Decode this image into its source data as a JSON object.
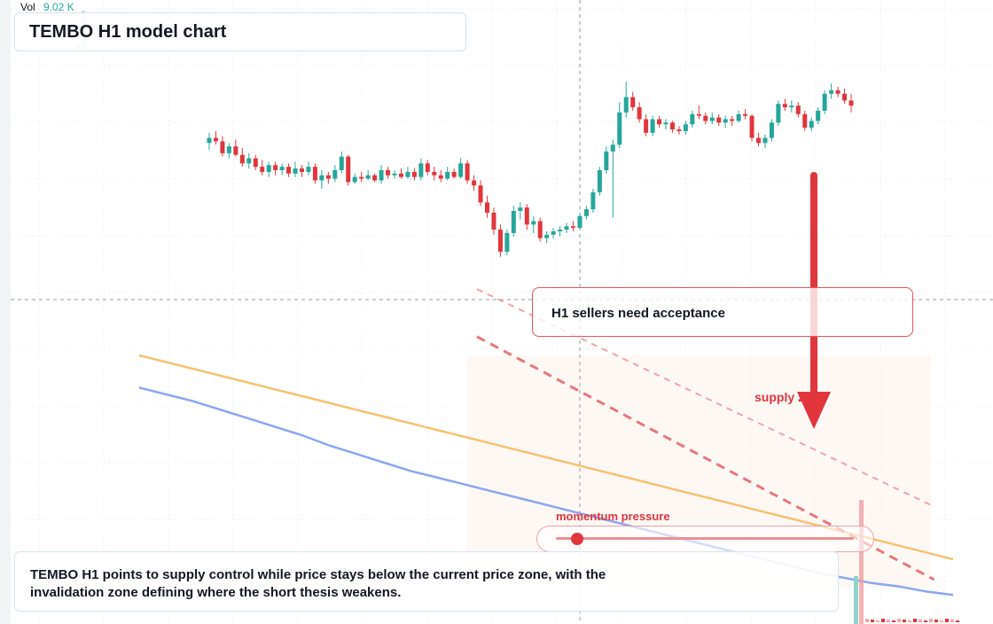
{
  "header": {
    "vol_label": "Vol",
    "vol_value": "9.02 K",
    "title": "TEMBO H1 model chart"
  },
  "annotations": {
    "callout": "H1 sellers need acceptance",
    "supply_label": "supply zone",
    "momentum_label": "momentum pressure",
    "summary": "TEMBO H1 points to supply control while price stays below the current price zone, with the invalidation zone defining where the short thesis weakens."
  },
  "momentum": {
    "level": 0.07
  },
  "colors": {
    "up": "#26a69a",
    "down": "#e0363c",
    "ma_fast": "#f7c06f",
    "ma_slow": "#8aa7f2",
    "signal": "#e0363c"
  },
  "chart_data": {
    "type": "candlestick",
    "symbol": "TEMBO",
    "timeframe": "H1",
    "grid": true,
    "price_ylim": [
      86,
      122
    ],
    "candles": [
      {
        "o": 114.0,
        "h": 114.6,
        "l": 113.6,
        "c": 114.3
      },
      {
        "o": 114.3,
        "h": 114.7,
        "l": 113.9,
        "c": 114.1
      },
      {
        "o": 114.1,
        "h": 114.4,
        "l": 113.2,
        "c": 113.4
      },
      {
        "o": 113.4,
        "h": 114.0,
        "l": 113.1,
        "c": 113.8
      },
      {
        "o": 113.8,
        "h": 114.2,
        "l": 113.2,
        "c": 113.3
      },
      {
        "o": 113.3,
        "h": 113.7,
        "l": 112.6,
        "c": 112.8
      },
      {
        "o": 112.8,
        "h": 113.4,
        "l": 112.5,
        "c": 113.1
      },
      {
        "o": 113.1,
        "h": 113.3,
        "l": 112.4,
        "c": 112.6
      },
      {
        "o": 112.6,
        "h": 113.0,
        "l": 112.1,
        "c": 112.3
      },
      {
        "o": 112.3,
        "h": 112.9,
        "l": 112.0,
        "c": 112.7
      },
      {
        "o": 112.7,
        "h": 112.9,
        "l": 112.1,
        "c": 112.4
      },
      {
        "o": 112.4,
        "h": 112.8,
        "l": 112.1,
        "c": 112.6
      },
      {
        "o": 112.6,
        "h": 112.8,
        "l": 112.0,
        "c": 112.2
      },
      {
        "o": 112.2,
        "h": 112.9,
        "l": 112.0,
        "c": 112.5
      },
      {
        "o": 112.5,
        "h": 112.7,
        "l": 112.0,
        "c": 112.3
      },
      {
        "o": 112.3,
        "h": 112.9,
        "l": 112.1,
        "c": 112.6
      },
      {
        "o": 112.6,
        "h": 112.8,
        "l": 111.6,
        "c": 111.8
      },
      {
        "o": 111.8,
        "h": 112.4,
        "l": 111.3,
        "c": 112.1
      },
      {
        "o": 112.1,
        "h": 112.3,
        "l": 111.6,
        "c": 111.9
      },
      {
        "o": 111.9,
        "h": 112.7,
        "l": 111.7,
        "c": 112.4
      },
      {
        "o": 112.4,
        "h": 113.5,
        "l": 112.2,
        "c": 113.2
      },
      {
        "o": 113.2,
        "h": 113.3,
        "l": 111.5,
        "c": 111.7
      },
      {
        "o": 111.7,
        "h": 112.2,
        "l": 111.6,
        "c": 112.0
      },
      {
        "o": 112.0,
        "h": 112.3,
        "l": 111.7,
        "c": 111.9
      },
      {
        "o": 111.9,
        "h": 112.4,
        "l": 111.8,
        "c": 112.1
      },
      {
        "o": 112.1,
        "h": 112.2,
        "l": 111.7,
        "c": 111.8
      },
      {
        "o": 111.8,
        "h": 112.7,
        "l": 111.6,
        "c": 112.4
      },
      {
        "o": 112.4,
        "h": 112.6,
        "l": 111.9,
        "c": 112.1
      },
      {
        "o": 112.1,
        "h": 112.4,
        "l": 111.9,
        "c": 112.2
      },
      {
        "o": 112.2,
        "h": 112.5,
        "l": 111.9,
        "c": 112.0
      },
      {
        "o": 112.0,
        "h": 112.6,
        "l": 111.9,
        "c": 112.3
      },
      {
        "o": 112.3,
        "h": 112.5,
        "l": 111.8,
        "c": 112.0
      },
      {
        "o": 112.0,
        "h": 113.1,
        "l": 111.8,
        "c": 112.8
      },
      {
        "o": 112.8,
        "h": 113.0,
        "l": 112.1,
        "c": 112.3
      },
      {
        "o": 112.3,
        "h": 112.6,
        "l": 111.8,
        "c": 112.1
      },
      {
        "o": 112.1,
        "h": 112.4,
        "l": 111.7,
        "c": 111.9
      },
      {
        "o": 111.9,
        "h": 112.6,
        "l": 111.8,
        "c": 112.3
      },
      {
        "o": 112.3,
        "h": 112.5,
        "l": 111.9,
        "c": 112.0
      },
      {
        "o": 112.0,
        "h": 113.1,
        "l": 111.9,
        "c": 112.8
      },
      {
        "o": 112.8,
        "h": 113.0,
        "l": 111.6,
        "c": 111.8
      },
      {
        "o": 111.8,
        "h": 112.1,
        "l": 111.2,
        "c": 111.5
      },
      {
        "o": 111.5,
        "h": 111.8,
        "l": 110.3,
        "c": 110.5
      },
      {
        "o": 110.5,
        "h": 110.9,
        "l": 109.6,
        "c": 109.9
      },
      {
        "o": 109.9,
        "h": 110.2,
        "l": 108.6,
        "c": 108.9
      },
      {
        "o": 108.9,
        "h": 109.2,
        "l": 107.3,
        "c": 107.6
      },
      {
        "o": 107.6,
        "h": 108.9,
        "l": 107.4,
        "c": 108.7
      },
      {
        "o": 108.7,
        "h": 110.3,
        "l": 108.5,
        "c": 110.0
      },
      {
        "o": 110.0,
        "h": 110.5,
        "l": 109.5,
        "c": 110.2
      },
      {
        "o": 110.2,
        "h": 110.4,
        "l": 108.9,
        "c": 109.2
      },
      {
        "o": 109.2,
        "h": 109.7,
        "l": 108.7,
        "c": 109.4
      },
      {
        "o": 109.4,
        "h": 109.6,
        "l": 108.2,
        "c": 108.4
      },
      {
        "o": 108.4,
        "h": 108.8,
        "l": 108.1,
        "c": 108.6
      },
      {
        "o": 108.6,
        "h": 109.0,
        "l": 108.4,
        "c": 108.8
      },
      {
        "o": 108.8,
        "h": 109.1,
        "l": 108.5,
        "c": 108.9
      },
      {
        "o": 108.9,
        "h": 109.3,
        "l": 108.7,
        "c": 109.1
      },
      {
        "o": 109.1,
        "h": 109.4,
        "l": 108.8,
        "c": 109.0
      },
      {
        "o": 109.0,
        "h": 109.9,
        "l": 108.9,
        "c": 109.7
      },
      {
        "o": 109.7,
        "h": 110.3,
        "l": 109.5,
        "c": 110.1
      },
      {
        "o": 110.1,
        "h": 111.3,
        "l": 109.9,
        "c": 111.1
      },
      {
        "o": 111.1,
        "h": 112.6,
        "l": 110.9,
        "c": 112.4
      },
      {
        "o": 112.4,
        "h": 113.8,
        "l": 112.2,
        "c": 113.5
      },
      {
        "o": 113.5,
        "h": 114.2,
        "l": 109.6,
        "c": 113.9
      },
      {
        "o": 113.9,
        "h": 116.4,
        "l": 113.7,
        "c": 115.8
      },
      {
        "o": 115.8,
        "h": 117.6,
        "l": 115.5,
        "c": 116.7
      },
      {
        "o": 116.7,
        "h": 117.0,
        "l": 115.9,
        "c": 116.1
      },
      {
        "o": 116.1,
        "h": 116.4,
        "l": 115.2,
        "c": 115.4
      },
      {
        "o": 115.4,
        "h": 115.7,
        "l": 114.4,
        "c": 114.6
      },
      {
        "o": 114.6,
        "h": 115.6,
        "l": 114.4,
        "c": 115.4
      },
      {
        "o": 115.4,
        "h": 115.6,
        "l": 114.9,
        "c": 115.1
      },
      {
        "o": 115.1,
        "h": 115.4,
        "l": 114.8,
        "c": 115.2
      },
      {
        "o": 115.2,
        "h": 115.3,
        "l": 114.6,
        "c": 114.8
      },
      {
        "o": 114.8,
        "h": 115.0,
        "l": 114.5,
        "c": 114.7
      },
      {
        "o": 114.7,
        "h": 115.3,
        "l": 114.5,
        "c": 115.1
      },
      {
        "o": 115.1,
        "h": 115.9,
        "l": 114.9,
        "c": 115.7
      },
      {
        "o": 115.7,
        "h": 116.2,
        "l": 115.4,
        "c": 115.6
      },
      {
        "o": 115.6,
        "h": 115.8,
        "l": 115.1,
        "c": 115.3
      },
      {
        "o": 115.3,
        "h": 115.8,
        "l": 115.1,
        "c": 115.5
      },
      {
        "o": 115.5,
        "h": 115.7,
        "l": 115.0,
        "c": 115.2
      },
      {
        "o": 115.2,
        "h": 115.6,
        "l": 114.9,
        "c": 115.4
      },
      {
        "o": 115.4,
        "h": 115.6,
        "l": 115.0,
        "c": 115.3
      },
      {
        "o": 115.3,
        "h": 115.9,
        "l": 115.2,
        "c": 115.7
      },
      {
        "o": 115.7,
        "h": 116.0,
        "l": 115.4,
        "c": 115.6
      },
      {
        "o": 115.6,
        "h": 115.7,
        "l": 114.1,
        "c": 114.3
      },
      {
        "o": 114.3,
        "h": 114.6,
        "l": 113.8,
        "c": 114.0
      },
      {
        "o": 114.0,
        "h": 114.5,
        "l": 113.7,
        "c": 114.3
      },
      {
        "o": 114.3,
        "h": 115.4,
        "l": 114.1,
        "c": 115.2
      },
      {
        "o": 115.2,
        "h": 116.5,
        "l": 115.0,
        "c": 116.3
      },
      {
        "o": 116.3,
        "h": 116.6,
        "l": 115.9,
        "c": 116.1
      },
      {
        "o": 116.1,
        "h": 116.5,
        "l": 115.8,
        "c": 116.2
      },
      {
        "o": 116.2,
        "h": 116.4,
        "l": 115.5,
        "c": 115.7
      },
      {
        "o": 115.7,
        "h": 115.9,
        "l": 114.7,
        "c": 114.9
      },
      {
        "o": 114.9,
        "h": 115.5,
        "l": 114.7,
        "c": 115.3
      },
      {
        "o": 115.3,
        "h": 116.1,
        "l": 115.1,
        "c": 115.9
      },
      {
        "o": 115.9,
        "h": 117.1,
        "l": 115.7,
        "c": 116.9
      },
      {
        "o": 116.9,
        "h": 117.5,
        "l": 116.6,
        "c": 117.1
      },
      {
        "o": 117.1,
        "h": 117.3,
        "l": 116.7,
        "c": 116.9
      },
      {
        "o": 116.9,
        "h": 117.2,
        "l": 116.3,
        "c": 116.5
      },
      {
        "o": 116.5,
        "h": 116.9,
        "l": 115.8,
        "c": 116.2
      }
    ],
    "moving_averages": [
      {
        "name": "",
        "values": [
          101.5,
          101.1,
          100.7,
          100.3,
          99.9,
          99.5,
          99.1,
          98.7,
          98.3,
          97.9,
          97.5,
          97.1,
          96.7,
          96.3,
          95.9,
          95.5,
          95.1,
          94.7,
          94.3,
          93.9,
          93.5,
          93.1,
          92.7,
          92.3,
          91.9,
          91.5,
          91.1,
          90.7,
          90.3,
          89.9,
          89.5
        ]
      },
      {
        "name": "",
        "values": [
          99.6,
          99.2,
          98.8,
          98.3,
          97.8,
          97.3,
          96.8,
          96.2,
          95.7,
          95.2,
          94.7,
          94.3,
          93.9,
          93.5,
          93.1,
          92.7,
          92.3,
          91.9,
          91.5,
          91.1,
          90.7,
          90.3,
          89.9,
          89.5,
          89.1,
          88.7,
          88.4,
          88.1,
          87.9,
          87.6,
          87.4
        ]
      }
    ],
    "trendlines": [
      {
        "style": "dashed",
        "from": [
          0.4,
          105.4
        ],
        "to": [
          0.93,
          92.6
        ]
      },
      {
        "style": "dashed",
        "from": [
          0.4,
          102.6
        ],
        "to": [
          0.93,
          88.3
        ]
      }
    ],
    "supply_zone": {
      "top": 101.5,
      "bottom": 87.8
    },
    "volume_bars": [
      {
        "v": 1.0,
        "up": false
      },
      {
        "v": 6.3,
        "up": true
      },
      {
        "v": 0.4,
        "up": false
      },
      {
        "v": 0.3,
        "up": false
      },
      {
        "v": 0.3,
        "up": false
      },
      {
        "v": 0.2,
        "up": false
      },
      {
        "v": 0.3,
        "up": false
      },
      {
        "v": 0.2,
        "up": false
      },
      {
        "v": 0.3,
        "up": false
      },
      {
        "v": 0.2,
        "up": false
      },
      {
        "v": 0.2,
        "up": false
      },
      {
        "v": 0.3,
        "up": false
      },
      {
        "v": 0.2,
        "up": false
      },
      {
        "v": 0.2,
        "up": false
      },
      {
        "v": 0.2,
        "up": false
      },
      {
        "v": 0.2,
        "up": false
      },
      {
        "v": 0.2,
        "up": false
      },
      {
        "v": 0.2,
        "up": false
      },
      {
        "v": 0.2,
        "up": false
      },
      {
        "v": 0.2,
        "up": false
      }
    ],
    "vol_latest": 9.02
  }
}
